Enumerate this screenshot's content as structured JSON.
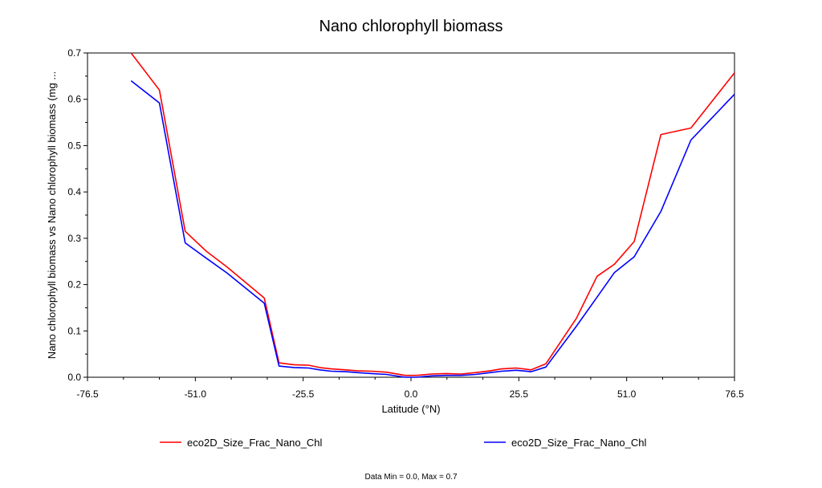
{
  "chart_data": {
    "type": "line",
    "title": "Nano chlorophyll biomass",
    "xlabel": "Latitude (°N)",
    "ylabel": "Nano chlorophyll biomass vs Nano chlorophyll biomass (mg ...",
    "xlim": [
      -76.5,
      76.5
    ],
    "ylim": [
      0,
      0.7
    ],
    "xticks": [
      "-76.5",
      "-51.0",
      "-25.5",
      "0.0",
      "25.5",
      "51.0",
      "76.5"
    ],
    "yticks": [
      "0.0",
      "0.1",
      "0.2",
      "0.3",
      "0.4",
      "0.5",
      "0.6",
      "0.7"
    ],
    "grid": false,
    "legend_position": "bottom",
    "footnote": "Data Min = 0.0, Max = 0.7",
    "series": [
      {
        "name": "eco2D_Size_Frac_Nano_Chl",
        "color": "#ff0000",
        "points": [
          [
            -66.2,
            0.702
          ],
          [
            -59.5,
            0.62
          ],
          [
            -53.4,
            0.315
          ],
          [
            -48.4,
            0.272
          ],
          [
            -43.5,
            0.238
          ],
          [
            -34.7,
            0.171
          ],
          [
            -31.2,
            0.031
          ],
          [
            -27.7,
            0.027
          ],
          [
            -24.2,
            0.026
          ],
          [
            -21.6,
            0.021
          ],
          [
            -18.9,
            0.018
          ],
          [
            -15.4,
            0.016
          ],
          [
            -12.8,
            0.014
          ],
          [
            -9.3,
            0.013
          ],
          [
            -5.8,
            0.011
          ],
          [
            -1.4,
            0.004
          ],
          [
            1.3,
            0.004
          ],
          [
            4.8,
            0.007
          ],
          [
            8.3,
            0.008
          ],
          [
            11.8,
            0.007
          ],
          [
            15.3,
            0.01
          ],
          [
            18.8,
            0.014
          ],
          [
            21.4,
            0.018
          ],
          [
            24.9,
            0.02
          ],
          [
            28.4,
            0.016
          ],
          [
            31.9,
            0.029
          ],
          [
            39.1,
            0.127
          ],
          [
            44.0,
            0.218
          ],
          [
            48.1,
            0.244
          ],
          [
            52.8,
            0.293
          ],
          [
            59.1,
            0.524
          ],
          [
            66.2,
            0.538
          ],
          [
            76.5,
            0.657
          ]
        ]
      },
      {
        "name": "eco2D_Size_Frac_Nano_Chl",
        "color": "#0000ff",
        "points": [
          [
            -66.2,
            0.64
          ],
          [
            -59.5,
            0.592
          ],
          [
            -53.4,
            0.29
          ],
          [
            -48.4,
            0.257
          ],
          [
            -43.5,
            0.225
          ],
          [
            -34.7,
            0.16
          ],
          [
            -31.2,
            0.024
          ],
          [
            -27.7,
            0.021
          ],
          [
            -24.2,
            0.02
          ],
          [
            -21.6,
            0.016
          ],
          [
            -18.9,
            0.013
          ],
          [
            -15.4,
            0.012
          ],
          [
            -12.8,
            0.01
          ],
          [
            -9.3,
            0.008
          ],
          [
            -5.8,
            0.006
          ],
          [
            -1.4,
            0.0
          ],
          [
            1.3,
            0.0
          ],
          [
            4.8,
            0.003
          ],
          [
            8.3,
            0.004
          ],
          [
            11.8,
            0.004
          ],
          [
            15.3,
            0.006
          ],
          [
            18.8,
            0.01
          ],
          [
            21.4,
            0.013
          ],
          [
            24.9,
            0.015
          ],
          [
            28.4,
            0.012
          ],
          [
            31.9,
            0.022
          ],
          [
            39.1,
            0.11
          ],
          [
            44.0,
            0.173
          ],
          [
            48.1,
            0.226
          ],
          [
            52.8,
            0.26
          ],
          [
            59.1,
            0.358
          ],
          [
            66.2,
            0.512
          ],
          [
            76.5,
            0.611
          ]
        ]
      }
    ]
  }
}
